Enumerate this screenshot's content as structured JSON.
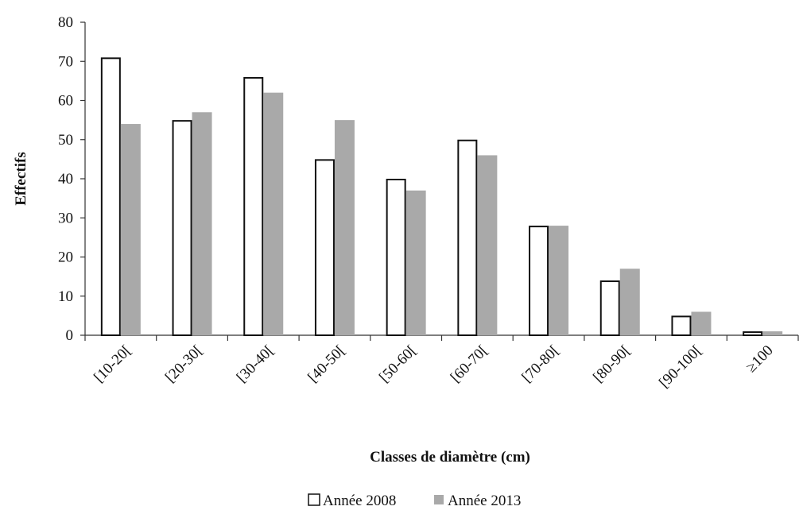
{
  "chart_data": {
    "type": "bar",
    "title": "",
    "xlabel": "Classes de diamètre (cm)",
    "ylabel": "Effectifs",
    "ylim": [
      0,
      80
    ],
    "yticks": [
      0,
      10,
      20,
      30,
      40,
      50,
      60,
      70,
      80
    ],
    "grid": false,
    "legend_position": "bottom",
    "categories": [
      "[10-20[",
      "[20-30[",
      "[30-40[",
      "[40-50[",
      "[50-60[",
      "[60-70[",
      "[70-80[",
      "[80-90[",
      "[90-100[",
      "≥100"
    ],
    "series": [
      {
        "name": "Année 2008",
        "values": [
          71,
          55,
          66,
          45,
          40,
          50,
          28,
          14,
          5,
          1
        ],
        "color": "#ffffff",
        "stroke": "#111111"
      },
      {
        "name": "Année 2013",
        "values": [
          54,
          57,
          62,
          55,
          37,
          46,
          28,
          17,
          6,
          1
        ],
        "color": "#a9a9a9",
        "stroke": "#a9a9a9"
      }
    ]
  }
}
